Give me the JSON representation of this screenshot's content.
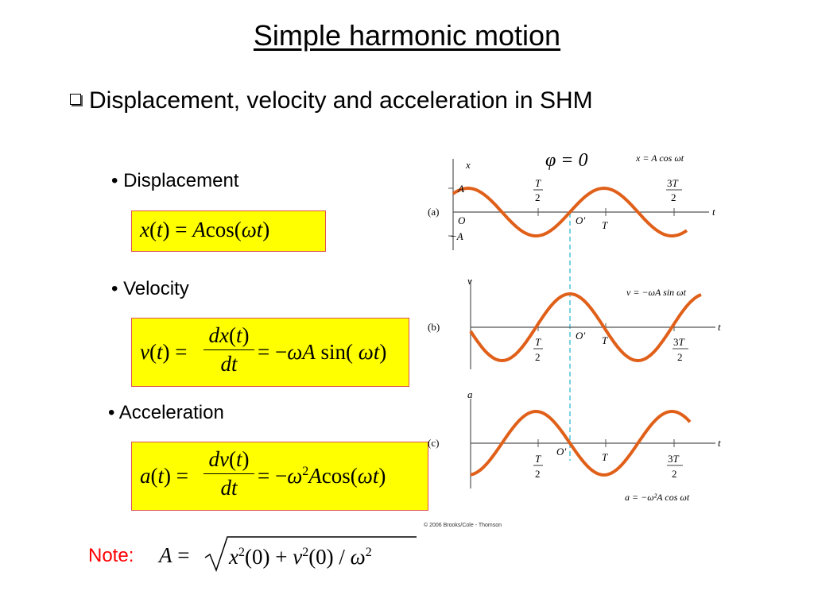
{
  "title": "Simple harmonic motion",
  "subtitle": "Displacement, velocity and acceleration in SHM",
  "bullets": {
    "displacement": "• Displacement",
    "velocity": "• Velocity",
    "acceleration": "• Acceleration"
  },
  "equations": {
    "displacement": "x(t) = A cos(ωt)",
    "velocity": "v(t) = dx(t)/dt = −ωA sin(ωt)",
    "acceleration": "a(t) = dv(t)/dt = −ω²A cos(ωt)"
  },
  "note": {
    "label": "Note:",
    "formula": "A = √(x²(0) + v²(0)/ω²)"
  },
  "graphs": {
    "phase": "φ = 0",
    "copyright": "© 2006 Brooks/Cole - Thomson",
    "a": {
      "tag": "(a)",
      "y_axis": "x",
      "t_axis": "t",
      "equation": "x = A cos ωt",
      "A": "A",
      "negA": "−A",
      "origin": "O",
      "origin2": "O′",
      "T": "T",
      "T2": "T/2",
      "threeT2": "3T/2"
    },
    "b": {
      "tag": "(b)",
      "y_axis": "v",
      "t_axis": "t",
      "equation": "v = −ωA sin ωt",
      "origin2": "O′",
      "T": "T",
      "T2": "T/2",
      "threeT2": "3T/2"
    },
    "c": {
      "tag": "(c)",
      "y_axis": "a",
      "t_axis": "t",
      "equation": "a = −ω²A cos ωt",
      "origin2": "O′",
      "T": "T",
      "T2": "T/2",
      "threeT2": "3T/2"
    }
  },
  "colors": {
    "curve": "#e0601a",
    "dashed": "#4ec3d8",
    "eq_box": "#ffff00",
    "eq_border": "#e05050",
    "note": "#ff0000"
  }
}
